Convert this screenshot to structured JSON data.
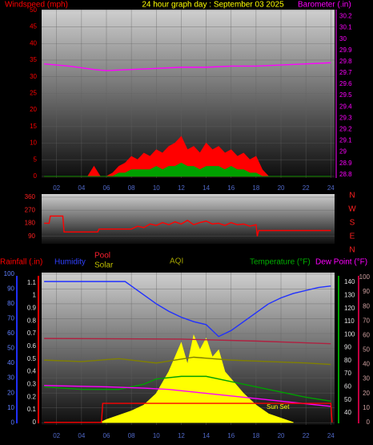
{
  "chart_data": [
    {
      "type": "line",
      "title": "24 hour graph day : September 03 2025",
      "y_label": "Windspeed (mph)",
      "y2_label": "Barometer (.in)",
      "xlim": [
        0.8,
        24.3
      ],
      "xticks": [
        {
          "value": 2,
          "label": "02"
        },
        {
          "value": 4,
          "label": "04"
        },
        {
          "value": 6,
          "label": "06"
        },
        {
          "value": 8,
          "label": "08"
        },
        {
          "value": 10,
          "label": "10"
        },
        {
          "value": 12,
          "label": "12"
        },
        {
          "value": 14,
          "label": "14"
        },
        {
          "value": 16,
          "label": "16"
        },
        {
          "value": 18,
          "label": "18"
        },
        {
          "value": 20,
          "label": "20"
        },
        {
          "value": 22,
          "label": "22"
        },
        {
          "value": 24,
          "label": "24"
        }
      ],
      "xtick_color": "#5068c8",
      "ylim": [
        -0.5,
        50.2
      ],
      "yticks": [
        0,
        5,
        10,
        15,
        20,
        25,
        30,
        35,
        40,
        45,
        50
      ],
      "ycolor": "#ff0000",
      "y2lim": [
        28.77,
        30.26
      ],
      "y2ticks": [
        28.8,
        28.9,
        29,
        29.1,
        29.2,
        29.3,
        29.4,
        29.5,
        29.6,
        29.7,
        29.8,
        29.9,
        30,
        30.1,
        30.2
      ],
      "y2color": "#ff00ff",
      "grid": true,
      "series": [
        {
          "color": "#ff0000",
          "fill": true,
          "x": [
            1,
            1.5,
            2,
            2.5,
            3,
            3.5,
            4,
            4.5,
            5,
            5.5,
            6,
            6.5,
            7,
            7.5,
            8,
            8.5,
            9,
            9.5,
            10,
            10.5,
            11,
            11.5,
            12,
            12.5,
            13,
            13.5,
            14,
            14.5,
            15,
            15.5,
            16,
            16.5,
            17,
            17.5,
            18,
            18.5,
            19,
            19.5,
            20,
            20.5,
            21,
            21.5,
            22,
            22.5,
            23,
            23.5,
            24
          ],
          "values": [
            0,
            0,
            0,
            0,
            0,
            0,
            0,
            0,
            3,
            0,
            0,
            1,
            3,
            4,
            6,
            5,
            7,
            6,
            8,
            7,
            9,
            10,
            12,
            8,
            9,
            7,
            10,
            8,
            9,
            7,
            8,
            6,
            7,
            5,
            6,
            2,
            0,
            0,
            0,
            0,
            0,
            0,
            0,
            0,
            0,
            0,
            0
          ]
        },
        {
          "color": "#00a000",
          "fill": true,
          "x": [
            1,
            1.5,
            2,
            2.5,
            3,
            3.5,
            4,
            4.5,
            5,
            5.5,
            6,
            6.5,
            7,
            7.5,
            8,
            8.5,
            9,
            9.5,
            10,
            10.5,
            11,
            11.5,
            12,
            12.5,
            13,
            13.5,
            14,
            14.5,
            15,
            15.5,
            16,
            16.5,
            17,
            17.5,
            18,
            18.5,
            19,
            19.5,
            20,
            20.5,
            21,
            21.5,
            22,
            22.5,
            23,
            23.5,
            24
          ],
          "values": [
            0,
            0,
            0,
            0,
            0,
            0,
            0,
            0,
            0,
            0,
            0,
            0,
            1,
            1,
            2,
            2,
            2,
            2,
            3,
            2,
            3,
            3,
            4,
            3,
            3,
            2,
            3,
            3,
            3,
            2,
            3,
            2,
            2,
            1,
            1,
            0,
            0,
            0,
            0,
            0,
            0,
            0,
            0,
            0,
            0,
            0,
            0
          ]
        },
        {
          "color": "#ff00ff",
          "axis": "y2",
          "x": [
            1,
            3,
            5,
            6,
            8,
            10,
            12,
            14,
            16,
            18,
            20,
            22,
            24
          ],
          "values": [
            29.78,
            29.76,
            29.73,
            29.72,
            29.73,
            29.74,
            29.75,
            29.75,
            29.76,
            29.76,
            29.77,
            29.78,
            29.79
          ]
        }
      ]
    },
    {
      "type": "line",
      "xlim": [
        0.8,
        24.3
      ],
      "ylim": [
        38.6,
        382
      ],
      "yticks": [
        90,
        180,
        270,
        360
      ],
      "ycolor": "#ff2020",
      "compass": [
        "N",
        "W",
        "S",
        "E",
        "N"
      ],
      "series": [
        {
          "color": "#ff0000",
          "x": [
            1,
            1.4,
            1.5,
            2.5,
            2.6,
            5.3,
            5.4,
            8,
            8.5,
            9,
            9.5,
            10,
            10.5,
            11,
            11.5,
            12,
            12.5,
            13,
            13.5,
            14,
            14.5,
            15,
            15.5,
            16,
            16.5,
            17,
            17.5,
            18,
            18.1,
            18.2,
            24
          ],
          "values": [
            180,
            180,
            230,
            230,
            120,
            120,
            140,
            140,
            160,
            150,
            175,
            165,
            185,
            170,
            190,
            175,
            200,
            170,
            185,
            195,
            175,
            180,
            165,
            185,
            170,
            175,
            160,
            170,
            90,
            130,
            130
          ]
        }
      ]
    },
    {
      "type": "line",
      "xlim": [
        0.8,
        24.3
      ],
      "xticks": [
        {
          "value": 2,
          "label": "02"
        },
        {
          "value": 4,
          "label": "04"
        },
        {
          "value": 6,
          "label": "06"
        },
        {
          "value": 8,
          "label": "08"
        },
        {
          "value": 10,
          "label": "10"
        },
        {
          "value": 12,
          "label": "12"
        },
        {
          "value": 14,
          "label": "14"
        },
        {
          "value": 16,
          "label": "16"
        },
        {
          "value": 18,
          "label": "18"
        },
        {
          "value": 20,
          "label": "20"
        },
        {
          "value": 22,
          "label": "22"
        },
        {
          "value": 24,
          "label": "24"
        }
      ],
      "xtick_color": "#5068c8",
      "grid": true,
      "annotation": "Sun Set",
      "axes": {
        "humidity": {
          "label": "Humidity",
          "lim": [
            -1.5,
            101
          ],
          "ticks": [
            0,
            10,
            20,
            30,
            40,
            50,
            60,
            70,
            80,
            90,
            100
          ],
          "color": "#2030ff",
          "tick_color": "#6080ff"
        },
        "rainfall": {
          "label": "Rainfall (.in)",
          "lim": [
            -0.02,
            1.18
          ],
          "ticks": [
            0,
            0.1,
            0.2,
            0.3,
            0.4,
            0.5,
            0.6,
            0.7,
            0.8,
            0.9,
            1,
            1.1
          ],
          "color": "#ff0000",
          "tick_color": "#e0e0e0"
        },
        "temperature": {
          "label": "Temperature (°F)",
          "lim": [
            30.8,
            147.4
          ],
          "ticks": [
            40,
            50,
            60,
            70,
            80,
            90,
            100,
            110,
            120,
            130,
            140
          ],
          "color": "#00a000",
          "tick_color": "#e0e0e0"
        },
        "right": {
          "lim": [
            -1.7,
            103.3
          ],
          "ticks": [
            0,
            10,
            20,
            30,
            40,
            50,
            60,
            70,
            80,
            90,
            100
          ],
          "color": "#c00040",
          "tick_color": "#d0a0a0"
        }
      },
      "series": [
        {
          "name": "Solar",
          "color": "#ffff00",
          "axis": "right",
          "fill": true,
          "x": [
            5.5,
            6,
            7,
            8,
            9,
            10,
            11,
            11.5,
            12,
            12.5,
            13,
            13.5,
            14,
            14.5,
            15,
            15.5,
            16,
            17,
            18,
            19,
            20,
            21
          ],
          "values": [
            0,
            2,
            5,
            8,
            12,
            20,
            35,
            45,
            55,
            40,
            60,
            50,
            58,
            45,
            50,
            35,
            30,
            20,
            12,
            6,
            3,
            0
          ]
        },
        {
          "name": "Pool",
          "color": "#b02040",
          "axis": "temperature",
          "x": [
            1,
            12,
            18,
            24
          ],
          "values": [
            97,
            96.5,
            95,
            93
          ]
        },
        {
          "name": "AQI",
          "color": "#808000",
          "axis": "right",
          "x": [
            1,
            4,
            7,
            10,
            13,
            16,
            19,
            22,
            24
          ],
          "values": [
            43,
            42,
            44,
            41,
            45,
            43,
            42,
            41,
            40
          ]
        },
        {
          "color": "#2030ff",
          "axis": "humidity",
          "x": [
            1,
            3,
            5,
            7,
            7.5,
            8,
            9,
            10,
            11,
            12,
            13,
            14,
            15,
            16,
            17,
            18,
            19,
            20,
            21,
            22,
            23,
            24
          ],
          "values": [
            95,
            95,
            95,
            95,
            95,
            92,
            86,
            80,
            75,
            71,
            68,
            66,
            58,
            62,
            68,
            74,
            80,
            84,
            87,
            89,
            91,
            92
          ]
        },
        {
          "color": "#00a000",
          "axis": "temperature",
          "x": [
            1,
            4,
            7,
            9,
            10,
            12,
            14,
            16,
            18,
            20,
            22,
            24
          ],
          "values": [
            60,
            58,
            58,
            62,
            66,
            68,
            68,
            64,
            60,
            56,
            52,
            49
          ]
        },
        {
          "name": "Dew Point (°F)",
          "color": "#ff00ff",
          "axis": "temperature",
          "x": [
            1,
            6,
            9,
            11,
            13,
            15,
            17,
            19,
            21,
            24
          ],
          "values": [
            61,
            60,
            59,
            58,
            56,
            54,
            52,
            50,
            48,
            45
          ]
        },
        {
          "color": "#ff0000",
          "axis": "rainfall",
          "x": [
            1,
            5.6,
            5.7,
            24,
            24.1
          ],
          "values": [
            0,
            0,
            0.15,
            0.15,
            0
          ]
        }
      ]
    }
  ]
}
